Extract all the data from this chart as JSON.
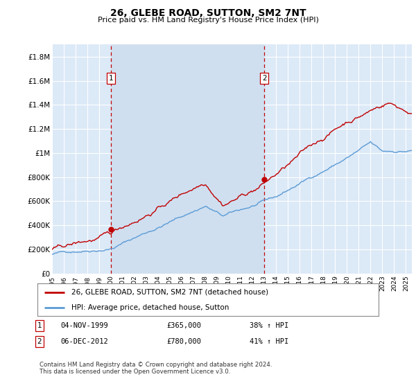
{
  "title": "26, GLEBE ROAD, SUTTON, SM2 7NT",
  "subtitle": "Price paid vs. HM Land Registry's House Price Index (HPI)",
  "ylim": [
    0,
    1900000
  ],
  "yticks": [
    0,
    200000,
    400000,
    600000,
    800000,
    1000000,
    1200000,
    1400000,
    1600000,
    1800000
  ],
  "ytick_labels": [
    "£0",
    "£200K",
    "£400K",
    "£600K",
    "£800K",
    "£1M",
    "£1.2M",
    "£1.4M",
    "£1.6M",
    "£1.8M"
  ],
  "bg_color": "#dce9f7",
  "grid_color": "#ffffff",
  "shade_color": "#c5d8ef",
  "sale1_x": 2000.0,
  "sale1_price": 365000,
  "sale2_x": 2013.0,
  "sale2_price": 780000,
  "legend_line1": "26, GLEBE ROAD, SUTTON, SM2 7NT (detached house)",
  "legend_line2": "HPI: Average price, detached house, Sutton",
  "footer": "Contains HM Land Registry data © Crown copyright and database right 2024.\nThis data is licensed under the Open Government Licence v3.0.",
  "hpi_color": "#5b9bd5",
  "price_color": "#c00000",
  "vline_color": "#c00000",
  "sale_box_color": "#c00000",
  "xmin": 1995.0,
  "xmax": 2025.5,
  "table_row1_date": "04-NOV-1999",
  "table_row1_price": "£365,000",
  "table_row1_pct": "38% ↑ HPI",
  "table_row2_date": "06-DEC-2012",
  "table_row2_price": "£780,000",
  "table_row2_pct": "41% ↑ HPI"
}
